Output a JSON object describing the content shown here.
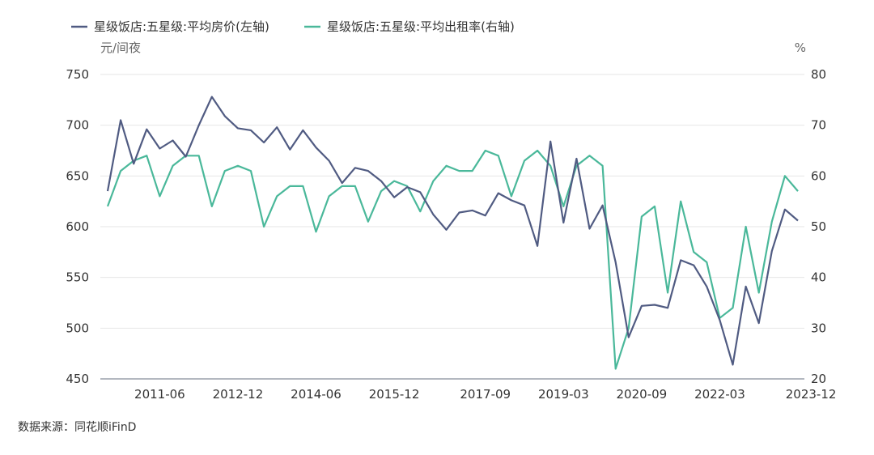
{
  "chart_data": {
    "type": "line",
    "legend_position": "top-left",
    "grid": true,
    "y_left_unit": "元/间夜",
    "y_right_unit": "%",
    "y_left_range": [
      450,
      750
    ],
    "y_right_range": [
      20,
      80
    ],
    "y_left_ticks": [
      "750",
      "700",
      "650",
      "600",
      "550",
      "500",
      "450"
    ],
    "y_right_ticks": [
      "80",
      "70",
      "60",
      "50",
      "40",
      "30",
      "20"
    ],
    "x_ticks": [
      "2011-06",
      "2012-12",
      "2014-06",
      "2015-12",
      "2017-09",
      "2019-03",
      "2020-09",
      "2022-03",
      "2023-12"
    ],
    "x_tick_index": [
      4,
      10,
      16,
      22,
      29,
      35,
      41,
      47,
      54
    ],
    "series": [
      {
        "name": "星级饭店:五星级:平均房价(左轴)",
        "axis": "left",
        "color": "#505b82",
        "values": [
          635,
          705,
          662,
          696,
          677,
          685,
          669,
          700,
          728,
          709,
          697,
          695,
          683,
          698,
          676,
          695,
          678,
          665,
          643,
          658,
          655,
          645,
          629,
          639,
          634,
          612,
          597,
          614,
          616,
          611,
          633,
          626,
          621,
          581,
          684,
          604,
          667,
          598,
          621,
          565,
          491,
          522,
          523,
          520,
          567,
          562,
          541,
          508,
          464,
          541,
          505,
          576,
          617,
          606
        ]
      },
      {
        "name": "星级饭店:五星级:平均出租率(右轴)",
        "axis": "right",
        "color": "#4ab89a",
        "values": [
          54,
          61,
          63,
          64,
          56,
          62,
          64,
          64,
          54,
          61,
          62,
          61,
          50,
          56,
          58,
          58,
          49,
          56,
          58,
          58,
          51,
          57,
          59,
          58,
          53,
          59,
          62,
          61,
          61,
          65,
          64,
          56,
          63,
          65,
          62,
          54,
          62,
          64,
          62,
          22,
          30,
          52,
          54,
          37,
          55,
          45,
          43,
          32,
          34,
          50,
          37,
          51,
          60,
          57
        ]
      }
    ]
  },
  "source": "数据来源：同花顺iFinD"
}
